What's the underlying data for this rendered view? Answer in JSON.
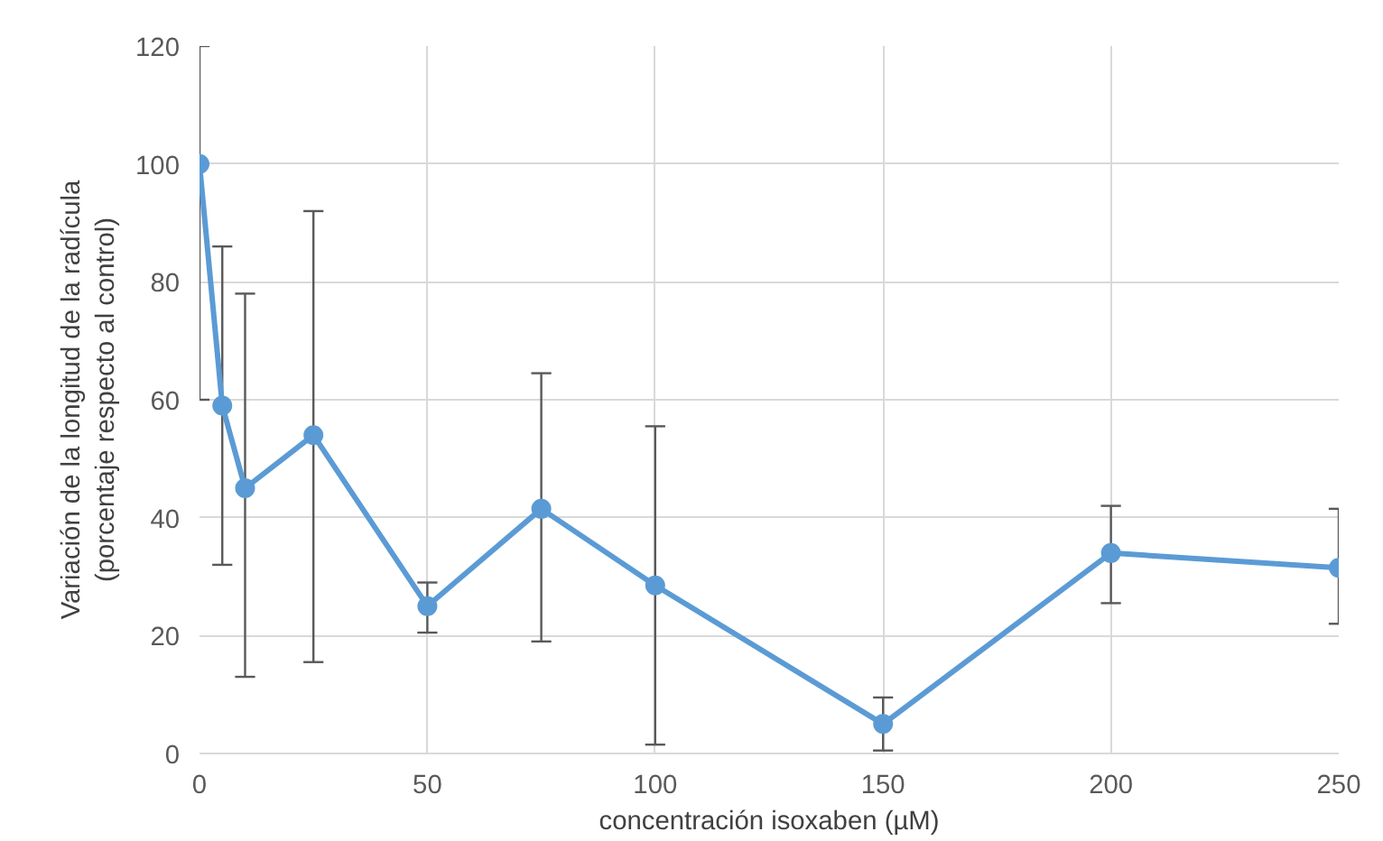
{
  "chart_data": {
    "type": "line",
    "xlabel": "concentración isoxaben (µM)",
    "ylabel": "Variación de la longitud de la radícula\n(porcentaje respecto al control)",
    "x": [
      0,
      5,
      10,
      25,
      50,
      75,
      100,
      150,
      200,
      250
    ],
    "series": [
      {
        "color": "#5b9bd5",
        "values": [
          100,
          59,
          45,
          54,
          25,
          41.5,
          28.5,
          5,
          34,
          31.5
        ],
        "errors": [
          [
            60,
            120
          ],
          [
            32,
            86
          ],
          [
            13,
            78
          ],
          [
            15.5,
            92
          ],
          [
            20.5,
            29
          ],
          [
            19,
            64.5
          ],
          [
            1.5,
            55.5
          ],
          [
            0.5,
            9.5
          ],
          [
            25.5,
            42
          ],
          [
            22,
            41.5
          ]
        ]
      }
    ],
    "xlim": [
      0,
      250
    ],
    "xticks": [
      0,
      50,
      100,
      150,
      200,
      250
    ],
    "ylim": [
      0,
      120
    ],
    "yticks": [
      0,
      20,
      40,
      60,
      80,
      100,
      120
    ],
    "grid": true,
    "marker": "circle",
    "line_style": "solid"
  }
}
